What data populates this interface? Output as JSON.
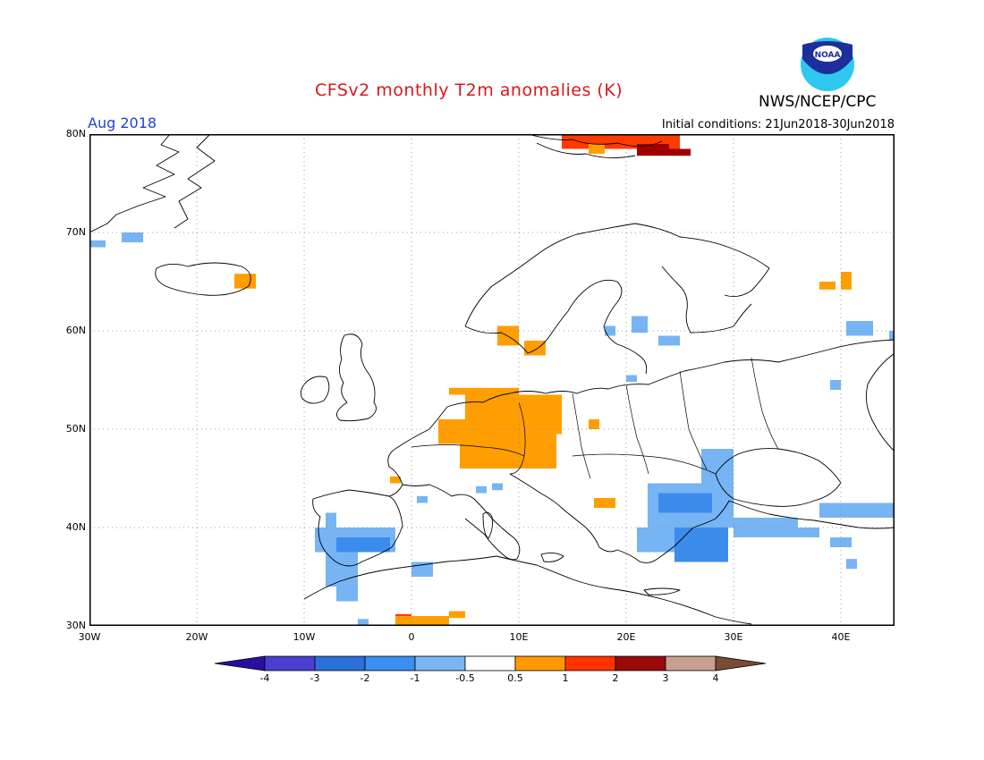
{
  "header": {
    "title": "CFSv2 monthly T2m anomalies (K)",
    "agency": "NWS/NCEP/CPC",
    "logo_text": "NOAA",
    "valid_month": "Aug 2018",
    "initial_conditions": "Initial conditions: 21Jun2018-30Jun2018"
  },
  "map": {
    "lon_range": [
      -30,
      45
    ],
    "lat_range": [
      30,
      80
    ],
    "lat_labels": [
      "80N",
      "70N",
      "60N",
      "50N",
      "40N",
      "30N"
    ],
    "lon_labels": [
      "30W",
      "20W",
      "10W",
      "0",
      "10E",
      "20E",
      "30E",
      "40E"
    ],
    "gridlines": "dotted"
  },
  "colorbar": {
    "labels": [
      "-4",
      "-3",
      "-2",
      "-1",
      "-0.5",
      "0.5",
      "1",
      "2",
      "3",
      "4"
    ],
    "colors": [
      "#2b0fa0",
      "#4b3fd0",
      "#2b6fd8",
      "#3a8ff0",
      "#7ab6f5",
      "#ffffff",
      "#ff9900",
      "#ff3300",
      "#9a0a0a",
      "#c8a090",
      "#7a4a35"
    ]
  },
  "colors": {
    "orange": "#ff9e00",
    "red": "#ff3b00",
    "darkred": "#a00000",
    "lightblue": "#76b4f4",
    "blue": "#3c8cec",
    "darkblue": "#2e6fd8"
  }
}
